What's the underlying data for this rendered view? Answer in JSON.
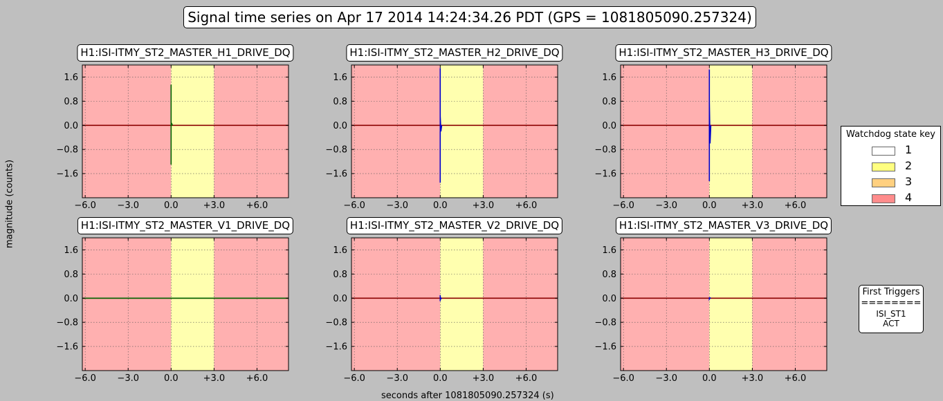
{
  "figure": {
    "title": "Signal time series on Apr 17 2014 14:24:34.26 PDT (GPS = 1081805090.257324)",
    "ylabel": "magnitude (counts)",
    "xlabel": "seconds after 1081805090.257324 (s)"
  },
  "legend": {
    "title": "Watchdog state key",
    "items": [
      {
        "label": "1",
        "color": "#ffffff"
      },
      {
        "label": "2",
        "color": "#ffff80"
      },
      {
        "label": "3",
        "color": "#ffd080"
      },
      {
        "label": "4",
        "color": "#ff8c8c"
      }
    ]
  },
  "first_triggers": {
    "title": "First Triggers",
    "separator": "========",
    "line1": "ISI_ST1",
    "line2": "ACT"
  },
  "colors": {
    "state2_fill": "#ffffaf",
    "state4_fill": "#ffb0b0",
    "zero_line": "#8b0000"
  },
  "chart_data": [
    {
      "type": "line",
      "title": "H1:ISI-ITMY_ST2_MASTER_H1_DRIVE_DQ",
      "xlim": [
        -6.2,
        8.2
      ],
      "ylim": [
        -2.4,
        2.0
      ],
      "xticks": [
        -6.0,
        -3.0,
        0.0,
        3.0,
        6.0
      ],
      "xtick_labels": [
        "−6.0",
        "−3.0",
        "0.0",
        "+3.0",
        "+6.0"
      ],
      "yticks": [
        1.6,
        0.8,
        0.0,
        -0.8,
        -1.6
      ],
      "ytick_labels": [
        "1.6",
        "0.8",
        "0.0",
        "−0.8",
        "−1.6"
      ],
      "grid": true,
      "state_regions": [
        {
          "state": 4,
          "x": [
            -6.2,
            0.0
          ]
        },
        {
          "state": 2,
          "x": [
            0.0,
            3.0
          ]
        },
        {
          "state": 4,
          "x": [
            3.0,
            8.2
          ]
        }
      ],
      "series": [
        {
          "color": "#006400",
          "x": [
            0.0,
            0.0,
            0.0,
            0.05,
            0.1
          ],
          "y": [
            1.35,
            -1.3,
            0.0,
            0.05,
            0.0
          ]
        }
      ]
    },
    {
      "type": "line",
      "title": "H1:ISI-ITMY_ST2_MASTER_H2_DRIVE_DQ",
      "xlim": [
        -6.2,
        8.2
      ],
      "ylim": [
        -2.4,
        2.0
      ],
      "xticks": [
        -6.0,
        -3.0,
        0.0,
        3.0,
        6.0
      ],
      "xtick_labels": [
        "−6.0",
        "−3.0",
        "0.0",
        "+3.0",
        "+6.0"
      ],
      "yticks": [
        1.6,
        0.8,
        0.0,
        -0.8,
        -1.6
      ],
      "ytick_labels": [
        "1.6",
        "0.8",
        "0.0",
        "−0.8",
        "−1.6"
      ],
      "grid": true,
      "state_regions": [
        {
          "state": 4,
          "x": [
            -6.2,
            0.0
          ]
        },
        {
          "state": 2,
          "x": [
            0.0,
            3.0
          ]
        },
        {
          "state": 4,
          "x": [
            3.0,
            8.2
          ]
        }
      ],
      "series": [
        {
          "color": "#0000cc",
          "x": [
            0.0,
            0.0,
            0.0,
            0.05,
            0.1
          ],
          "y": [
            1.9,
            -1.9,
            0.3,
            -0.2,
            0.0
          ]
        }
      ]
    },
    {
      "type": "line",
      "title": "H1:ISI-ITMY_ST2_MASTER_H3_DRIVE_DQ",
      "xlim": [
        -6.2,
        8.2
      ],
      "ylim": [
        -2.4,
        2.0
      ],
      "xticks": [
        -6.0,
        -3.0,
        0.0,
        3.0,
        6.0
      ],
      "xtick_labels": [
        "−6.0",
        "−3.0",
        "0.0",
        "+3.0",
        "+6.0"
      ],
      "yticks": [
        1.6,
        0.8,
        0.0,
        -0.8,
        -1.6
      ],
      "ytick_labels": [
        "1.6",
        "0.8",
        "0.0",
        "−0.8",
        "−1.6"
      ],
      "grid": true,
      "state_regions": [
        {
          "state": 4,
          "x": [
            -6.2,
            0.0
          ]
        },
        {
          "state": 2,
          "x": [
            0.0,
            3.0
          ]
        },
        {
          "state": 4,
          "x": [
            3.0,
            8.2
          ]
        }
      ],
      "series": [
        {
          "color": "#0000cc",
          "x": [
            0.0,
            0.0,
            0.0,
            0.05,
            0.1
          ],
          "y": [
            1.85,
            -1.85,
            0.8,
            -0.6,
            0.0
          ]
        }
      ]
    },
    {
      "type": "line",
      "title": "H1:ISI-ITMY_ST2_MASTER_V1_DRIVE_DQ",
      "xlim": [
        -6.2,
        8.2
      ],
      "ylim": [
        -2.4,
        2.0
      ],
      "xticks": [
        -6.0,
        -3.0,
        0.0,
        3.0,
        6.0
      ],
      "xtick_labels": [
        "−6.0",
        "−3.0",
        "0.0",
        "+3.0",
        "+6.0"
      ],
      "yticks": [
        1.6,
        0.8,
        0.0,
        -0.8,
        -1.6
      ],
      "ytick_labels": [
        "1.6",
        "0.8",
        "0.0",
        "−0.8",
        "−1.6"
      ],
      "grid": true,
      "state_regions": [
        {
          "state": 4,
          "x": [
            -6.2,
            0.0
          ]
        },
        {
          "state": 2,
          "x": [
            0.0,
            3.0
          ]
        },
        {
          "state": 4,
          "x": [
            3.0,
            8.2
          ]
        }
      ],
      "series": [
        {
          "color": "#006400",
          "x": [
            -6.2,
            8.2
          ],
          "y": [
            0.0,
            0.0
          ]
        }
      ]
    },
    {
      "type": "line",
      "title": "H1:ISI-ITMY_ST2_MASTER_V2_DRIVE_DQ",
      "xlim": [
        -6.2,
        8.2
      ],
      "ylim": [
        -2.4,
        2.0
      ],
      "xticks": [
        -6.0,
        -3.0,
        0.0,
        3.0,
        6.0
      ],
      "xtick_labels": [
        "−6.0",
        "−3.0",
        "0.0",
        "+3.0",
        "+6.0"
      ],
      "yticks": [
        1.6,
        0.8,
        0.0,
        -0.8,
        -1.6
      ],
      "ytick_labels": [
        "1.6",
        "0.8",
        "0.0",
        "−0.8",
        "−1.6"
      ],
      "grid": true,
      "state_regions": [
        {
          "state": 4,
          "x": [
            -6.2,
            0.0
          ]
        },
        {
          "state": 2,
          "x": [
            0.0,
            3.0
          ]
        },
        {
          "state": 4,
          "x": [
            3.0,
            8.2
          ]
        }
      ],
      "series": [
        {
          "color": "#0000cc",
          "x": [
            0.0,
            0.0,
            0.0,
            0.05,
            0.1
          ],
          "y": [
            0.1,
            -0.1,
            0.05,
            -0.02,
            0.0
          ]
        }
      ]
    },
    {
      "type": "line",
      "title": "H1:ISI-ITMY_ST2_MASTER_V3_DRIVE_DQ",
      "xlim": [
        -6.2,
        8.2
      ],
      "ylim": [
        -2.4,
        2.0
      ],
      "xticks": [
        -6.0,
        -3.0,
        0.0,
        3.0,
        6.0
      ],
      "xtick_labels": [
        "−6.0",
        "−3.0",
        "0.0",
        "+3.0",
        "+6.0"
      ],
      "yticks": [
        1.6,
        0.8,
        0.0,
        -0.8,
        -1.6
      ],
      "ytick_labels": [
        "1.6",
        "0.8",
        "0.0",
        "−0.8",
        "−1.6"
      ],
      "grid": true,
      "state_regions": [
        {
          "state": 4,
          "x": [
            -6.2,
            0.0
          ]
        },
        {
          "state": 2,
          "x": [
            0.0,
            3.0
          ]
        },
        {
          "state": 4,
          "x": [
            3.0,
            8.2
          ]
        }
      ],
      "series": [
        {
          "color": "#0000cc",
          "x": [
            0.0,
            0.0,
            0.05,
            0.1
          ],
          "y": [
            0.03,
            -0.03,
            0.01,
            0.0
          ]
        }
      ]
    }
  ]
}
